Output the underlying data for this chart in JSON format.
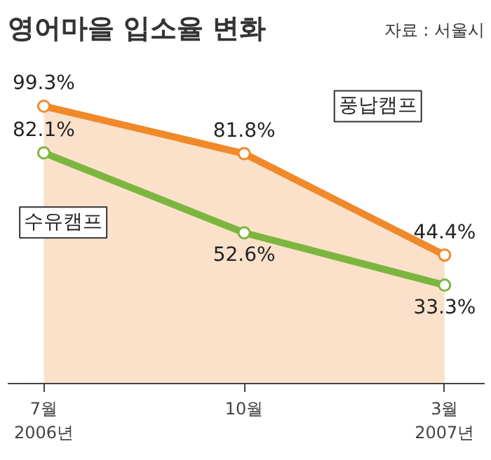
{
  "chart_data": {
    "type": "line",
    "title": "영어마을 입소율 변화",
    "annotations": [
      "자료 : 서울시"
    ],
    "categories": [
      "7월\n2006년",
      "10월",
      "3월\n2007년"
    ],
    "series": [
      {
        "name": "풍납캠프",
        "type": "area",
        "color": "#f0892a",
        "values": [
          99.3,
          81.8,
          44.4
        ],
        "value_labels": [
          "99.3%",
          "81.8%",
          "44.4%"
        ]
      },
      {
        "name": "수유캠프",
        "color": "#7cb63f",
        "values": [
          82.1,
          52.6,
          33.3
        ],
        "value_labels": [
          "82.1%",
          "52.6%",
          "33.3%"
        ]
      }
    ],
    "marker": "circle",
    "line_style": "solid",
    "grid": false,
    "legend": false
  }
}
